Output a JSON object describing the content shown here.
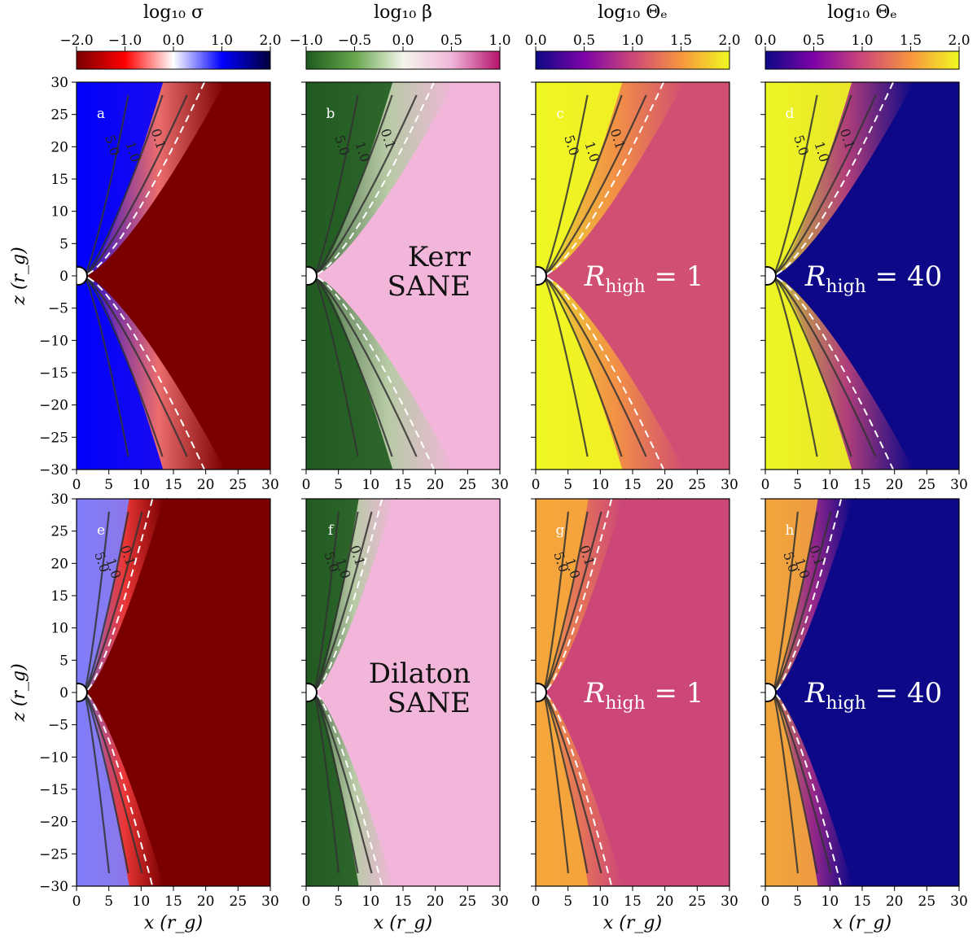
{
  "chart_data": {
    "type": "heatmap",
    "layout": "2 rows x 4 columns",
    "colorbars": [
      {
        "title": "log₁₀ σ",
        "cmap": "seismic_r",
        "range": [
          -2.0,
          2.0
        ],
        "ticks": [
          "−2.0",
          "−1.0",
          "0.0",
          "1.0",
          "2.0"
        ],
        "tick_values": [
          -2,
          -1,
          0,
          1,
          2
        ],
        "stops": [
          "#7a0000",
          "#ff0000",
          "#ffffff",
          "#0000ff",
          "#00003c"
        ]
      },
      {
        "title": "log₁₀ β",
        "cmap": "PiYG_r",
        "range": [
          -1.0,
          1.0
        ],
        "ticks": [
          "−1.0",
          "−0.5",
          "0.0",
          "0.5",
          "1.0"
        ],
        "tick_values": [
          -1,
          -0.5,
          0,
          0.5,
          1
        ],
        "stops": [
          "#1e5a1e",
          "#66a64c",
          "#f4f6ec",
          "#f1b6da",
          "#b5116a"
        ]
      },
      {
        "title": "log₁₀ Θₑ",
        "cmap": "plasma",
        "range": [
          0.0,
          2.0
        ],
        "ticks": [
          "0.0",
          "0.5",
          "1.0",
          "1.5",
          "2.0"
        ],
        "tick_values": [
          0,
          0.5,
          1,
          1.5,
          2
        ],
        "stops": [
          "#0d0887",
          "#7e03a8",
          "#cc4778",
          "#f89540",
          "#f0f921"
        ]
      },
      {
        "title": "log₁₀ Θₑ",
        "cmap": "plasma",
        "range": [
          0.0,
          2.0
        ],
        "ticks": [
          "0.0",
          "0.5",
          "1.0",
          "1.5",
          "2.0"
        ],
        "tick_values": [
          0,
          0.5,
          1,
          1.5,
          2
        ],
        "stops": [
          "#0d0887",
          "#7e03a8",
          "#cc4778",
          "#f89540",
          "#f0f921"
        ]
      }
    ],
    "xaxis": {
      "label": "x (r_g)",
      "range": [
        0,
        30
      ],
      "ticks": [
        "0",
        "5",
        "10",
        "15",
        "20",
        "25",
        "30"
      ],
      "tick_values": [
        0,
        5,
        10,
        15,
        20,
        25,
        30
      ]
    },
    "yaxis": {
      "label": "z (r_g)",
      "range": [
        -30,
        30
      ],
      "ticks": [
        "30",
        "25",
        "20",
        "15",
        "10",
        "5",
        "0",
        "−5",
        "−10",
        "−15",
        "−20",
        "−25",
        "−30"
      ],
      "tick_values": [
        30,
        25,
        20,
        15,
        10,
        5,
        0,
        -5,
        -10,
        -15,
        -20,
        -25,
        -30
      ]
    },
    "rows": [
      {
        "model": "Kerr SANE",
        "annotation_lines": [
          "Kerr",
          "SANE"
        ]
      },
      {
        "model": "Dilaton SANE",
        "annotation_lines": [
          "Dilaton",
          "SANE"
        ]
      }
    ],
    "panels": [
      {
        "letter": "a",
        "row": 0,
        "col": 0,
        "quantity": "log10 sigma",
        "background_value": -2.0,
        "jet_value": 1.0
      },
      {
        "letter": "b",
        "row": 0,
        "col": 1,
        "quantity": "log10 beta",
        "background_value": 0.5,
        "jet_value": -1.0
      },
      {
        "letter": "c",
        "row": 0,
        "col": 2,
        "quantity": "log10 Theta_e",
        "R_high": 1,
        "background_value": 1.05,
        "jet_value": 2.0
      },
      {
        "letter": "d",
        "row": 0,
        "col": 3,
        "quantity": "log10 Theta_e",
        "R_high": 40,
        "background_value": 0.0,
        "jet_value": 2.0
      },
      {
        "letter": "e",
        "row": 1,
        "col": 0,
        "quantity": "log10 sigma",
        "background_value": -2.0,
        "jet_value": 0.5
      },
      {
        "letter": "f",
        "row": 1,
        "col": 1,
        "quantity": "log10 beta",
        "background_value": 0.5,
        "jet_value": -1.0
      },
      {
        "letter": "g",
        "row": 1,
        "col": 2,
        "quantity": "log10 Theta_e",
        "R_high": 1,
        "background_value": 1.0,
        "jet_value": 1.6
      },
      {
        "letter": "h",
        "row": 1,
        "col": 3,
        "quantity": "log10 Theta_e",
        "R_high": 40,
        "background_value": 0.0,
        "jet_value": 1.6
      }
    ],
    "contour_levels": {
      "sigma": [
        "5.0",
        "1.0",
        "0.1"
      ],
      "note": "solid black contours of σ; dashed white contour marks jet boundary"
    },
    "rhigh_annotations": [
      {
        "R_high": 1,
        "text_sub": "high",
        "text_eq": " = 1"
      },
      {
        "R_high": 40,
        "text_sub": "high",
        "text_eq": " = 40"
      }
    ],
    "annotation_prefix": "R"
  }
}
